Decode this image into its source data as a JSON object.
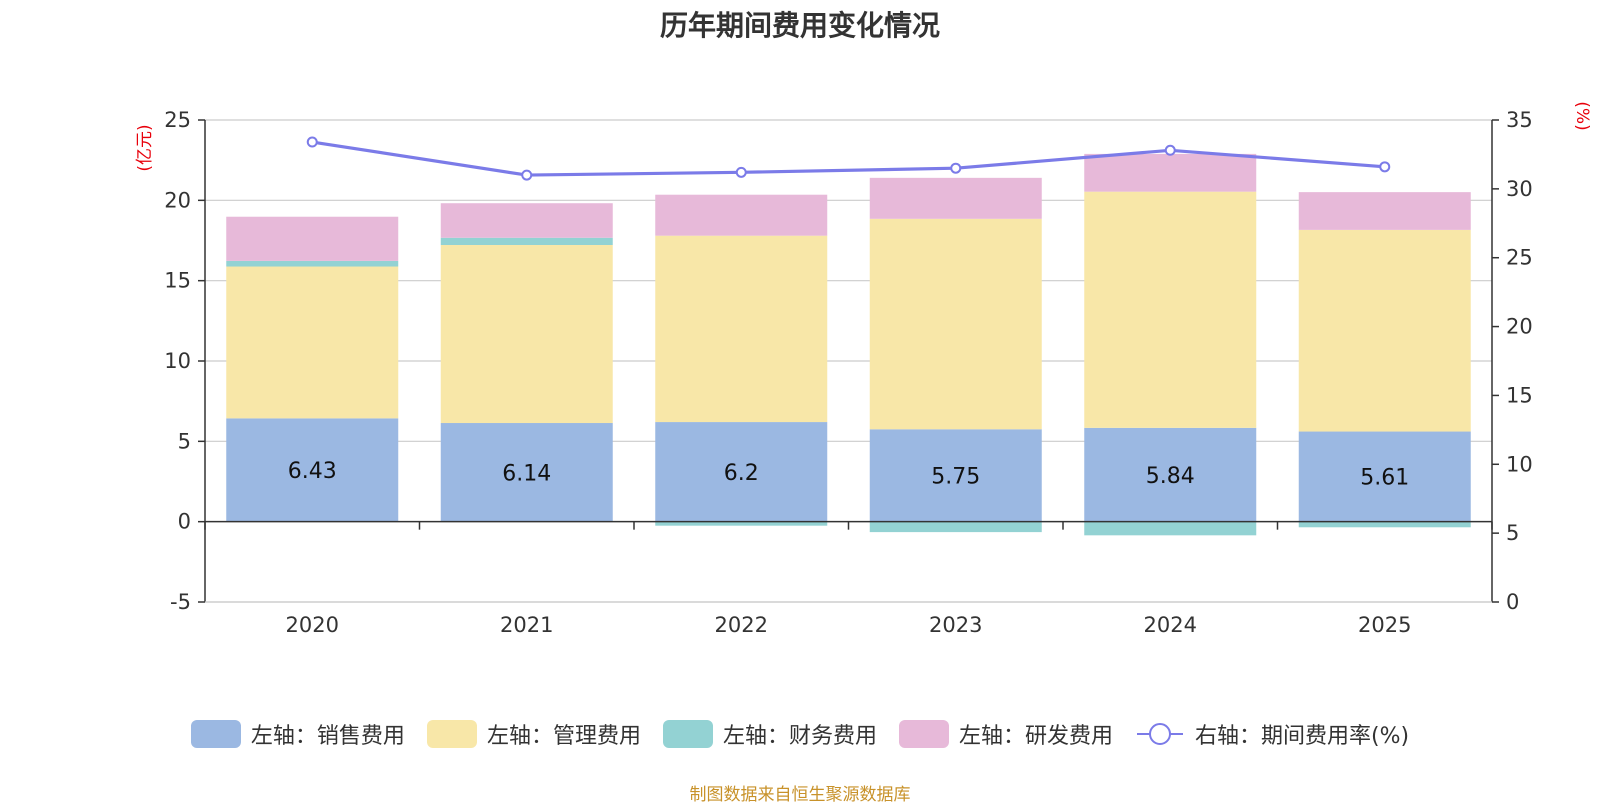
{
  "title": "历年期间费用变化情况",
  "source": "制图数据来自恒生聚源数据库",
  "chart_data": {
    "type": "bar",
    "stacked": true,
    "title": "历年期间费用变化情况",
    "categories": [
      "2020",
      "2021",
      "2022",
      "2023",
      "2024",
      "2025"
    ],
    "left_axis": {
      "unit": "(亿元)",
      "ylim": [
        -5,
        25
      ],
      "ticks": [
        -5,
        0,
        5,
        10,
        15,
        20,
        25
      ]
    },
    "right_axis": {
      "unit": "(%)",
      "ylim": [
        0,
        35
      ],
      "ticks": [
        0,
        5,
        10,
        15,
        20,
        25,
        30,
        35
      ]
    },
    "series": [
      {
        "name": "左轴：销售费用",
        "axis": "left",
        "type": "bar",
        "color": "#9bb8e2",
        "show_labels": true,
        "values": [
          6.43,
          6.14,
          6.2,
          5.75,
          5.84,
          5.61
        ]
      },
      {
        "name": "左轴：管理费用",
        "axis": "left",
        "type": "bar",
        "color": "#f8e7a8",
        "show_labels": false,
        "values": [
          9.45,
          11.08,
          11.6,
          13.1,
          14.7,
          12.55
        ]
      },
      {
        "name": "左轴：财务费用",
        "axis": "left",
        "type": "bar",
        "color": "#93d2d3",
        "show_labels": false,
        "values": [
          0.35,
          0.45,
          -0.25,
          -0.65,
          -0.85,
          -0.35
        ]
      },
      {
        "name": "左轴：研发费用",
        "axis": "left",
        "type": "bar",
        "color": "#e7b9d9",
        "show_labels": false,
        "values": [
          2.75,
          2.15,
          2.55,
          2.55,
          2.35,
          2.35
        ]
      },
      {
        "name": "右轴：期间费用率(%)",
        "axis": "right",
        "type": "line",
        "color": "#7b7be8",
        "show_labels": false,
        "values": [
          33.4,
          31.0,
          31.2,
          31.5,
          32.8,
          31.6
        ]
      }
    ]
  }
}
